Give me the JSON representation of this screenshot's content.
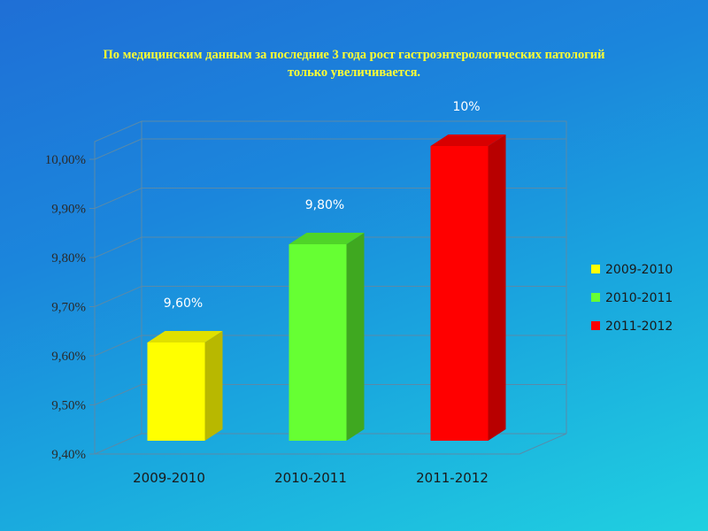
{
  "slide": {
    "title_line1": "По медицинским данным за последние 3 года рост гастроэнтерологических  патологий",
    "title_line2": "только увеличивается."
  },
  "chart_data": {
    "type": "bar",
    "categories": [
      "2009-2010",
      "2010-2011",
      "2011-2012"
    ],
    "values": [
      9.6,
      9.8,
      10.0
    ],
    "data_labels": [
      "9,60%",
      "9,80%",
      "10%"
    ],
    "yticks": [
      9.4,
      9.5,
      9.6,
      9.7,
      9.8,
      9.9,
      10.0
    ],
    "ytick_labels": [
      "9,40%",
      "9,50%",
      "9,60%",
      "9,70%",
      "9,80%",
      "9,90%",
      "10,00%"
    ],
    "ylim": [
      9.4,
      10.0
    ],
    "legend": {
      "position": "right",
      "entries": [
        "2009-2010",
        "2010-2011",
        "2011-2012"
      ]
    },
    "colors": {
      "front": [
        "#ffff00",
        "#66ff33",
        "#ff0000"
      ],
      "side": [
        "#b8b800",
        "#3fa820",
        "#b80000"
      ],
      "top": [
        "#e0e000",
        "#4fd428",
        "#d80000"
      ]
    },
    "grid": true,
    "style": "3d-bar"
  }
}
